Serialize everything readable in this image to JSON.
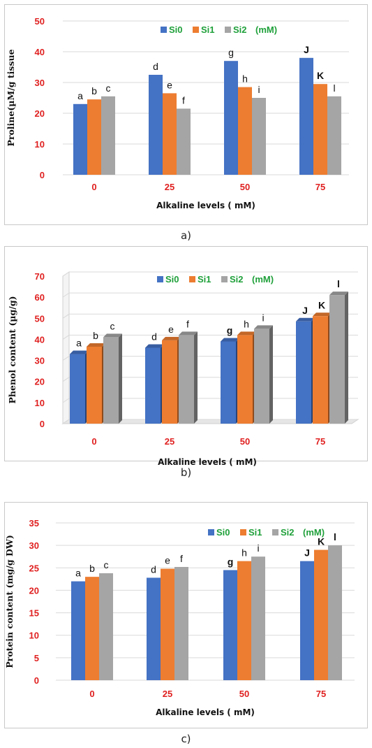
{
  "colors": {
    "si0": "#4472C4",
    "si1": "#ED7D31",
    "si2": "#A5A5A5",
    "tick_red": "#E02020",
    "legend_green": "#1FA03A",
    "grid": "#d9d9d9"
  },
  "captions": [
    "a)",
    "b)",
    "c)"
  ],
  "chart_data": [
    {
      "type": "bar",
      "caption": "a)",
      "ylabel": "Proline(µM/g tissue",
      "xlabel": "Alkaline levels ( mM)",
      "categories": [
        "0",
        "25",
        "50",
        "75"
      ],
      "ylim": [
        0,
        50
      ],
      "yticks": [
        "0",
        "10",
        "20",
        "30",
        "40",
        "50"
      ],
      "legend": {
        "position": "top-center",
        "unit": "(mM)"
      },
      "grid": true,
      "series": [
        {
          "name": "Si0",
          "values": [
            23,
            32.5,
            37,
            38
          ],
          "labels": [
            "a",
            "d",
            "g",
            "J"
          ]
        },
        {
          "name": "Si1",
          "values": [
            24.5,
            26.5,
            28.5,
            29.5
          ],
          "labels": [
            "b",
            "e",
            "h",
            "K"
          ]
        },
        {
          "name": "Si2",
          "values": [
            25.5,
            21.5,
            25,
            25.5
          ],
          "labels": [
            "c",
            "f",
            "i",
            "l"
          ]
        }
      ]
    },
    {
      "type": "bar",
      "caption": "b)",
      "ylabel": "Phenol content (µg/g)",
      "xlabel": "Alkaline levels ( mM)",
      "categories": [
        "0",
        "25",
        "50",
        "75"
      ],
      "ylim": [
        0,
        70
      ],
      "yticks": [
        "0",
        "10",
        "20",
        "30",
        "40",
        "50",
        "60",
        "70"
      ],
      "legend": {
        "position": "top-center",
        "unit": "(mM)"
      },
      "grid": true,
      "style": "3d",
      "series": [
        {
          "name": "Si0",
          "values": [
            33,
            36,
            39,
            48.5
          ],
          "labels": [
            "a",
            "d",
            "g",
            "J"
          ]
        },
        {
          "name": "Si1",
          "values": [
            36.5,
            39.5,
            42,
            51
          ],
          "labels": [
            "b",
            "e",
            "h",
            "K"
          ]
        },
        {
          "name": "Si2",
          "values": [
            41,
            42,
            45,
            61
          ],
          "labels": [
            "c",
            "f",
            "i",
            "l"
          ]
        }
      ]
    },
    {
      "type": "bar",
      "caption": "c)",
      "ylabel": "Protein content (mg/g DW)",
      "xlabel": "Alkaline levels ( mM)",
      "categories": [
        "0",
        "25",
        "50",
        "75"
      ],
      "ylim": [
        0,
        35
      ],
      "yticks": [
        "0",
        "5",
        "10",
        "15",
        "20",
        "25",
        "30",
        "35"
      ],
      "legend": {
        "position": "top-right",
        "unit": "(mM)"
      },
      "grid": true,
      "series": [
        {
          "name": "Si0",
          "values": [
            22,
            22.8,
            24.5,
            26.5
          ],
          "labels": [
            "a",
            "d",
            "g",
            "J"
          ]
        },
        {
          "name": "Si1",
          "values": [
            23,
            24.8,
            26.5,
            29
          ],
          "labels": [
            "b",
            "e",
            "h",
            "K"
          ]
        },
        {
          "name": "Si2",
          "values": [
            23.8,
            25.2,
            27.5,
            30
          ],
          "labels": [
            "c",
            "f",
            "i",
            "l"
          ]
        }
      ]
    }
  ]
}
